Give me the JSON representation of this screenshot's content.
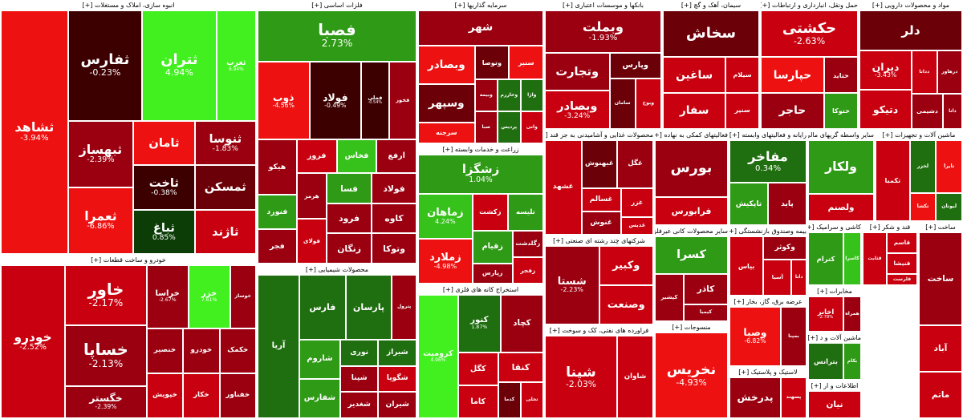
{
  "sections": [
    {
      "id": "construction",
      "title": "انبوه سازی، املاک و مستغلات [+]",
      "tiles": [
        {
          "n": "ثشاهد",
          "p": "-3.94%",
          "c": "r3",
          "big": 1
        },
        {
          "n": "ثفارس",
          "p": "-0.23%",
          "c": "dr",
          "big": 1
        },
        {
          "n": "ثتران",
          "p": "4.94%",
          "c": "g4",
          "big": 0
        },
        {
          "n": "ثغرب",
          "p": "6.94%",
          "c": "g4"
        },
        {
          "n": "ثبهساز",
          "p": "-2.39%",
          "c": "r1"
        },
        {
          "n": "ثعمرا",
          "p": "-6.86%",
          "c": "r3"
        },
        {
          "n": "ثامان",
          "p": "",
          "c": "r3"
        },
        {
          "n": "ثنوسا",
          "p": "-1.83%",
          "c": "r1"
        },
        {
          "n": "ثاخت",
          "p": "-0.38%",
          "c": "dr"
        },
        {
          "n": "ثباغ",
          "p": "0.85%",
          "c": "dg"
        },
        {
          "n": "ثمسکن",
          "p": "",
          "c": "r0"
        },
        {
          "n": "ثاژند",
          "p": "",
          "c": "r2"
        }
      ]
    },
    {
      "id": "metals",
      "title": "فلزات اساسی [+]",
      "tiles": [
        {
          "n": "فصبا",
          "p": "2.73%",
          "c": "g2",
          "big": 1
        },
        {
          "n": "ذوب",
          "p": "-4.56%",
          "c": "r3"
        },
        {
          "n": "فولاد",
          "p": "-0.49%",
          "c": "dr"
        },
        {
          "n": "فملی",
          "p": "-0.54%",
          "c": "dr"
        },
        {
          "n": "فخوز",
          "p": "",
          "c": "r1"
        },
        {
          "n": "هیکو",
          "p": "",
          "c": "r1"
        },
        {
          "n": "فنورد",
          "p": "",
          "c": "g2"
        },
        {
          "n": "فجر",
          "p": "",
          "c": "r1"
        },
        {
          "n": "فروز",
          "p": "",
          "c": "r2"
        },
        {
          "n": "فخاس",
          "p": "",
          "c": "g3"
        },
        {
          "n": "ارفع",
          "p": "",
          "c": "r1"
        },
        {
          "n": "هرمز",
          "p": "",
          "c": "r1"
        },
        {
          "n": "فولای",
          "p": "",
          "c": "r2"
        },
        {
          "n": "فسا",
          "p": "",
          "c": "g2"
        },
        {
          "n": "فولاد",
          "p": "",
          "c": "r1"
        },
        {
          "n": "فرود",
          "p": "",
          "c": "r1"
        },
        {
          "n": "زنگان",
          "p": "",
          "c": "r1"
        },
        {
          "n": "کاوه",
          "p": "",
          "c": "r1"
        },
        {
          "n": "وتوکا",
          "p": "",
          "c": "r1"
        }
      ]
    },
    {
      "id": "investments",
      "title": "سرمایه گذاریها [+]",
      "tiles": [
        {
          "n": "شهر",
          "p": "",
          "c": "r1"
        },
        {
          "n": "وبصادر",
          "p": "",
          "c": "r3"
        },
        {
          "n": "وسپهر",
          "p": "",
          "c": "r0"
        },
        {
          "n": "سرجنه",
          "p": "",
          "c": "r3"
        },
        {
          "n": "وتوصا",
          "p": "",
          "c": "r0"
        },
        {
          "n": "سنیر",
          "p": "",
          "c": "r3"
        },
        {
          "n": "وبیمه",
          "p": "",
          "c": "r1"
        },
        {
          "n": "صبا",
          "p": "",
          "c": "r1"
        },
        {
          "n": "وخارزم",
          "p": "",
          "c": "g1"
        },
        {
          "n": "واژا",
          "p": "",
          "c": "g1"
        },
        {
          "n": "پردیس",
          "p": "",
          "c": "g1"
        },
        {
          "n": "واتی",
          "p": "",
          "c": "r2"
        }
      ]
    },
    {
      "id": "banks",
      "title": "بانکها و موسسات اعتباری [+]",
      "tiles": [
        {
          "n": "وبملت",
          "p": "-1.93%",
          "c": "r1"
        },
        {
          "n": "وتجارت",
          "p": "",
          "c": "r1"
        },
        {
          "n": "وبصادر",
          "p": "-3.24%",
          "c": "r2"
        },
        {
          "n": "وپارس",
          "p": "",
          "c": "r0"
        },
        {
          "n": "سامان",
          "p": "",
          "c": "r0"
        },
        {
          "n": "وبوخ",
          "p": "",
          "c": "r2"
        }
      ]
    },
    {
      "id": "cement",
      "title": "سیمان، آهک و گچ [+]",
      "tiles": [
        {
          "n": "سخاش",
          "p": "",
          "c": "r0"
        },
        {
          "n": "ساغین",
          "p": "",
          "c": "r2"
        },
        {
          "n": "سفار",
          "p": "",
          "c": "r2"
        },
        {
          "n": "سیلام",
          "p": "",
          "c": "r2"
        },
        {
          "n": "سنیر",
          "p": "",
          "c": "r2"
        }
      ]
    },
    {
      "id": "transport",
      "title": "حمل ونقل، انبارداری و ارتباطات [+]",
      "tiles": [
        {
          "n": "حکشتی",
          "p": "-2.63%",
          "c": "r2"
        },
        {
          "n": "حپارسا",
          "p": "",
          "c": "r3"
        },
        {
          "n": "حاجر",
          "p": "",
          "c": "r1"
        },
        {
          "n": "حتاید",
          "p": "",
          "c": "r1"
        },
        {
          "n": "حتوکا",
          "p": "",
          "c": "g2"
        }
      ]
    },
    {
      "id": "pharma",
      "title": "مواد و محصولات دارویی [+]",
      "tiles": [
        {
          "n": "دلر",
          "p": "",
          "c": "r0"
        },
        {
          "n": "دیران",
          "p": "-3.43%",
          "c": "r2"
        },
        {
          "n": "دتیکو",
          "p": "",
          "c": "r2"
        },
        {
          "n": "دداتا",
          "p": "",
          "c": "r2"
        },
        {
          "n": "درهاور",
          "p": "",
          "c": "r1"
        },
        {
          "n": "دشیمی",
          "p": "",
          "c": "r1"
        },
        {
          "n": "داتا",
          "p": "",
          "c": "r1"
        }
      ]
    },
    {
      "id": "automotive",
      "title": "خودرو و ساخت قطعات [+]",
      "tiles": [
        {
          "n": "خودرو",
          "p": "-2.52%",
          "c": "r2",
          "big": 1
        },
        {
          "n": "خاور",
          "p": "-2.17%",
          "c": "r2"
        },
        {
          "n": "خساپا",
          "p": "-2.13%",
          "c": "r1"
        },
        {
          "n": "خگستر",
          "p": "-2.39%",
          "c": "r1"
        },
        {
          "n": "خراسا",
          "p": "-2.67%",
          "c": "r1"
        },
        {
          "n": "خزر",
          "p": "7.61%",
          "c": "g4"
        },
        {
          "n": "خوساز",
          "p": "",
          "c": "r1"
        },
        {
          "n": "خنصیر",
          "p": "",
          "c": "r1"
        },
        {
          "n": "خپویش",
          "p": "",
          "c": "r2"
        },
        {
          "n": "خودرو",
          "p": "",
          "c": "r1"
        },
        {
          "n": "خکمک",
          "p": "",
          "c": "r1"
        },
        {
          "n": "خکار",
          "p": "",
          "c": "r2"
        },
        {
          "n": "خفناور",
          "p": "",
          "c": "r1"
        }
      ]
    },
    {
      "id": "petroleum",
      "title": "محصولات شیمیایی [+]",
      "tiles": [
        {
          "n": "آریا",
          "p": "",
          "c": "g1"
        },
        {
          "n": "فارس",
          "p": "",
          "c": "g1"
        },
        {
          "n": "پارسان",
          "p": "",
          "c": "g1"
        },
        {
          "n": "پترول",
          "p": "",
          "c": "r1"
        },
        {
          "n": "شاروم",
          "p": "",
          "c": "g2"
        },
        {
          "n": "شفارس",
          "p": "",
          "c": "g2"
        },
        {
          "n": "نوری",
          "p": "",
          "c": "g1"
        },
        {
          "n": "شیراز",
          "p": "",
          "c": "g1"
        },
        {
          "n": "شپنا",
          "p": "",
          "c": "r1"
        },
        {
          "n": "شغدیر",
          "p": "",
          "c": "r1"
        },
        {
          "n": "شگویا",
          "p": "",
          "c": "r2"
        },
        {
          "n": "شیران",
          "p": "",
          "c": "r1"
        }
      ]
    },
    {
      "id": "agri",
      "title": "زراعت و خدمات وابسته [+]",
      "tiles": [
        {
          "n": "زشگزا",
          "p": "1.04%",
          "c": "g2"
        },
        {
          "n": "زماهان",
          "p": "4.24%",
          "c": "g3"
        },
        {
          "n": "زملارد",
          "p": "-4.98%",
          "c": "r3"
        },
        {
          "n": "زکشت",
          "p": "",
          "c": "r2"
        },
        {
          "n": "تلیسه",
          "p": "",
          "c": "g2"
        },
        {
          "n": "زقیام",
          "p": "",
          "c": "g2"
        },
        {
          "n": "زپارس",
          "p": "",
          "c": "r1"
        },
        {
          "n": "زگلدشت",
          "p": "",
          "c": "r1"
        },
        {
          "n": "زفجر",
          "p": "",
          "c": "r2"
        }
      ]
    },
    {
      "id": "mining",
      "title": "استخراج کانه های فلزی [+]",
      "tiles": [
        {
          "n": "کرومیت",
          "p": "4.96%",
          "c": "g4",
          "big": 1
        },
        {
          "n": "کنور",
          "p": "1.87%",
          "c": "g1"
        },
        {
          "n": "کچاد",
          "p": "",
          "c": "r1"
        },
        {
          "n": "کگل",
          "p": "",
          "c": "r2"
        },
        {
          "n": "کاما",
          "p": "",
          "c": "r2"
        },
        {
          "n": "کنقا",
          "p": "",
          "c": "r2"
        },
        {
          "n": "کدما",
          "p": "",
          "c": "r0"
        },
        {
          "n": "تجلی",
          "p": "",
          "c": "r2"
        }
      ]
    },
    {
      "id": "food",
      "title": "محصولات غذایی و آشامیدنی به جز قند [+]",
      "tiles": [
        {
          "n": "غشهد",
          "p": "",
          "c": "r2"
        },
        {
          "n": "غبهنوش",
          "p": "",
          "c": "r0"
        },
        {
          "n": "غگل",
          "p": "",
          "c": "r1"
        },
        {
          "n": "غسالم",
          "p": "",
          "c": "r2"
        },
        {
          "n": "غنوش",
          "p": "",
          "c": "r1"
        },
        {
          "n": "غزر",
          "p": "",
          "c": "r2"
        },
        {
          "n": "غدیس",
          "p": "",
          "c": "r2"
        }
      ]
    },
    {
      "id": "multi",
      "title": "شرکتهای چند رشته ای صنعتی [+]",
      "tiles": [
        {
          "n": "شستا",
          "p": "-2.23%",
          "c": "r1"
        },
        {
          "n": "وکبیر",
          "p": "",
          "c": "r2"
        },
        {
          "n": "وصنعت",
          "p": "",
          "c": "r2"
        }
      ]
    },
    {
      "id": "refinery",
      "title": "فراورده های نفتی، کک و سوخت [+]",
      "tiles": [
        {
          "n": "شپنا",
          "p": "-2.03%",
          "c": "r2",
          "big": 1
        },
        {
          "n": "شاوان",
          "p": "",
          "c": "r2"
        }
      ]
    },
    {
      "id": "other_fin",
      "title": "فعالیتهای کمکی به نهاده [+]",
      "tiles": [
        {
          "n": "بورس",
          "p": "",
          "c": "r1"
        },
        {
          "n": "فرابورس",
          "p": "",
          "c": "r2"
        }
      ]
    },
    {
      "id": "it",
      "title": "رایانه و فعالیتهای وابسته [+]",
      "tiles": [
        {
          "n": "مفاخر",
          "p": "0.34%",
          "c": "g1"
        },
        {
          "n": "تاپکیش",
          "p": "",
          "c": "g2"
        },
        {
          "n": "پاید",
          "p": "",
          "c": "r1"
        }
      ]
    },
    {
      "id": "other_trade",
      "title": "سایر واسطه گریهای مالی [+]",
      "tiles": [
        {
          "n": "ولکار",
          "p": "",
          "c": "g2"
        },
        {
          "n": "ولصنم",
          "p": "",
          "c": "r2"
        }
      ]
    },
    {
      "id": "machinery",
      "title": "ماشین آلات و تجهیزات [+]",
      "tiles": [
        {
          "n": "تکمبا",
          "p": "",
          "c": "r2"
        },
        {
          "n": "لخزر",
          "p": "",
          "c": "g1"
        },
        {
          "n": "تایرا",
          "p": "",
          "c": "r3"
        },
        {
          "n": "تکشا",
          "p": "",
          "c": "r3"
        },
        {
          "n": "لبوتان",
          "p": "",
          "c": "g1"
        }
      ]
    },
    {
      "id": "chem_other",
      "title": "سایر محصولات کانی غیرفلزی [+]",
      "tiles": [
        {
          "n": "کسرا",
          "p": "",
          "c": "g2"
        },
        {
          "n": "کپشیر",
          "p": "",
          "c": "r1"
        },
        {
          "n": "کاذر",
          "p": "",
          "c": "r1"
        },
        {
          "n": "کیمیا",
          "p": "",
          "c": "r1"
        }
      ]
    },
    {
      "id": "textile",
      "title": "منسوجات [+]",
      "tiles": [
        {
          "n": "نخریس",
          "p": "-4.93%",
          "c": "r3"
        }
      ]
    },
    {
      "id": "insurance",
      "title": "بیمه وصندوق بازنشستگی [+]",
      "tiles": [
        {
          "n": "بیاس",
          "p": "",
          "c": "r2"
        },
        {
          "n": "وکوثر",
          "p": "",
          "c": "r1"
        },
        {
          "n": "آسیا",
          "p": "",
          "c": "r2"
        },
        {
          "n": "دانا",
          "p": "",
          "c": "r2"
        }
      ]
    },
    {
      "id": "ceramic",
      "title": "کاشی و سرامیک [+]",
      "tiles": [
        {
          "n": "کترام",
          "p": "",
          "c": "g2"
        },
        {
          "n": "کاسرا",
          "p": "",
          "c": "g3"
        }
      ]
    },
    {
      "id": "sugar",
      "title": "قند و شکر [+]",
      "tiles": [
        {
          "n": "قثابت",
          "p": "",
          "c": "r2"
        },
        {
          "n": "قاسم",
          "p": "",
          "c": "r2"
        },
        {
          "n": "قنیشا",
          "p": "",
          "c": "r2"
        },
        {
          "n": "قلرست",
          "p": "",
          "c": "r2"
        }
      ]
    },
    {
      "id": "retail",
      "title": "عرضه برق، گاز، بخار [+]",
      "tiles": [
        {
          "n": "وصبا",
          "p": "-6.82%",
          "c": "r3"
        },
        {
          "n": "بمپنا",
          "p": "",
          "c": "r1"
        }
      ]
    },
    {
      "id": "telecom",
      "title": "مخابرات [+]",
      "tiles": [
        {
          "n": "اخابر",
          "p": "-2.78%",
          "c": "r2"
        },
        {
          "n": "همراه",
          "p": "",
          "c": "r1"
        }
      ]
    },
    {
      "id": "rubber",
      "title": "لاستیک و پلاستیک [+]",
      "tiles": [
        {
          "n": "پدرخش",
          "p": "",
          "c": "r1"
        },
        {
          "n": "پسهند",
          "p": "",
          "c": "r2"
        }
      ]
    },
    {
      "id": "electric",
      "title": "ماشین آلات و د [+]",
      "tiles": [
        {
          "n": "بترانس",
          "p": "",
          "c": "g1"
        },
        {
          "n": "بکام",
          "p": "",
          "c": "g2"
        }
      ]
    },
    {
      "id": "info",
      "title": "اطلاعات و ار [+]",
      "tiles": [
        {
          "n": "نیان",
          "p": "",
          "c": "r2"
        }
      ]
    },
    {
      "id": "misc",
      "title": "ساخت [+]",
      "tiles": [
        {
          "n": "ساخت",
          "p": "",
          "c": "r1"
        },
        {
          "n": "آباد",
          "p": "",
          "c": "r2"
        },
        {
          "n": "ماتم",
          "p": "",
          "c": "r2"
        }
      ]
    }
  ]
}
